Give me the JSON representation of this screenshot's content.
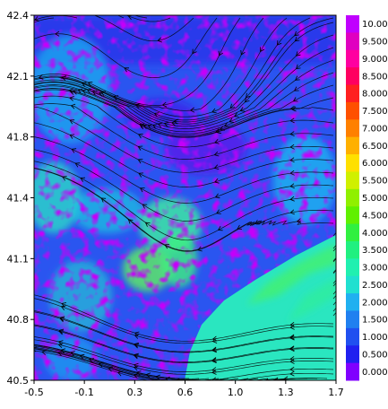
{
  "chart_data": {
    "type": "heatmap",
    "title": "",
    "xlabel": "",
    "ylabel": "",
    "xlim": [
      -0.5,
      1.7
    ],
    "ylim": [
      40.5,
      42.4
    ],
    "x_ticks": [
      "-0.5",
      "-0.1",
      "0.3",
      "0.6",
      "1.0",
      "1.3",
      "1.7"
    ],
    "y_ticks": [
      "42.4",
      "42.1",
      "41.8",
      "41.4",
      "41.1",
      "40.8",
      "40.5"
    ],
    "overlay": "streamlines",
    "colorbar": {
      "placement": "right",
      "labels": [
        "10.00",
        "9.500",
        "9.000",
        "8.500",
        "8.000",
        "7.500",
        "7.000",
        "6.500",
        "6.000",
        "5.500",
        "5.000",
        "4.500",
        "4.000",
        "3.500",
        "3.000",
        "2.500",
        "2.000",
        "1.500",
        "1.000",
        "0.500",
        "0.000"
      ],
      "colors": [
        "#c000ff",
        "#e000c0",
        "#ff00a0",
        "#ff0060",
        "#ff2020",
        "#ff5000",
        "#ff8000",
        "#ffb000",
        "#ffe000",
        "#d0f000",
        "#90f000",
        "#60f000",
        "#30f040",
        "#20f080",
        "#20f0b0",
        "#20e0d0",
        "#20b0f0",
        "#2080f0",
        "#2050f0",
        "#2020f0",
        "#8000ff"
      ]
    }
  }
}
